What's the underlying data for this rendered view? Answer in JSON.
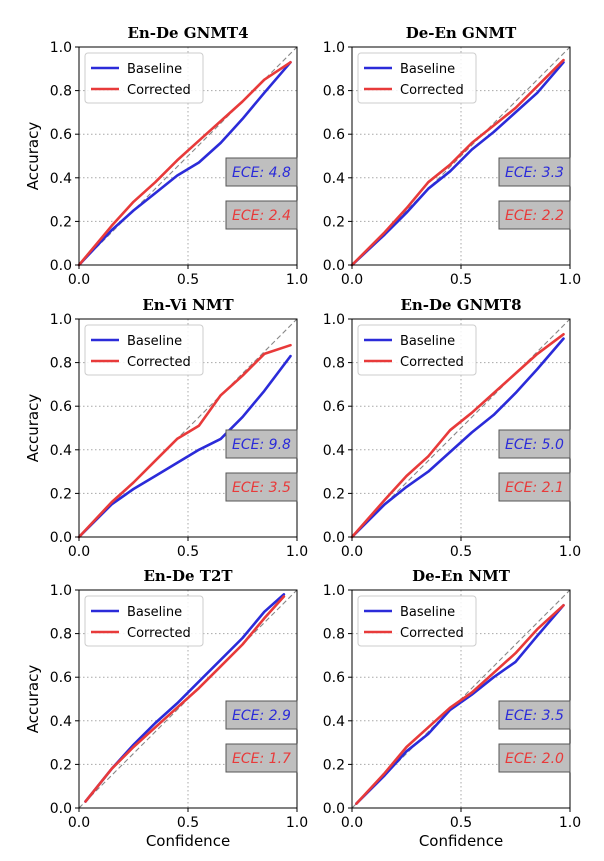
{
  "colors": {
    "baseline": "#2b2bd9",
    "corrected": "#e83a3a",
    "diagonal": "#888888",
    "ece_box": "#bfbfbf"
  },
  "axis_labels": {
    "x": "Confidence",
    "y": "Accuracy"
  },
  "chart_data": [
    {
      "type": "line",
      "title": "En-De GNMT4",
      "xlim": [
        0,
        1
      ],
      "ylim": [
        0,
        1
      ],
      "xticks": [
        "0.0",
        "0.5",
        "1.0"
      ],
      "yticks": [
        "0.0",
        "0.2",
        "0.4",
        "0.6",
        "0.8",
        "1.0"
      ],
      "grid": true,
      "legend": "top-left",
      "series": [
        {
          "name": "Baseline",
          "x": [
            0,
            0.15,
            0.25,
            0.35,
            0.45,
            0.55,
            0.65,
            0.75,
            0.85,
            0.97
          ],
          "y": [
            0,
            0.16,
            0.25,
            0.33,
            0.41,
            0.47,
            0.56,
            0.67,
            0.79,
            0.93
          ]
        },
        {
          "name": "Corrected",
          "x": [
            0,
            0.15,
            0.25,
            0.35,
            0.45,
            0.55,
            0.65,
            0.75,
            0.85,
            0.97
          ],
          "y": [
            0,
            0.18,
            0.29,
            0.38,
            0.48,
            0.57,
            0.66,
            0.75,
            0.85,
            0.93
          ]
        }
      ],
      "ece": [
        {
          "label": "ECE: 4.8",
          "series": "Baseline"
        },
        {
          "label": "ECE: 2.4",
          "series": "Corrected"
        }
      ]
    },
    {
      "type": "line",
      "title": "De-En GNMT",
      "xlim": [
        0,
        1
      ],
      "ylim": [
        0,
        1
      ],
      "xticks": [
        "0.0",
        "0.5",
        "1.0"
      ],
      "yticks": [
        "0.0",
        "0.2",
        "0.4",
        "0.6",
        "0.8",
        "1.0"
      ],
      "grid": true,
      "legend": "top-left",
      "series": [
        {
          "name": "Baseline",
          "x": [
            0,
            0.15,
            0.25,
            0.35,
            0.45,
            0.55,
            0.65,
            0.75,
            0.85,
            0.97
          ],
          "y": [
            0,
            0.14,
            0.24,
            0.35,
            0.43,
            0.53,
            0.61,
            0.7,
            0.79,
            0.93
          ]
        },
        {
          "name": "Corrected",
          "x": [
            0,
            0.15,
            0.25,
            0.35,
            0.45,
            0.55,
            0.65,
            0.75,
            0.85,
            0.97
          ],
          "y": [
            0,
            0.15,
            0.26,
            0.38,
            0.46,
            0.56,
            0.64,
            0.72,
            0.82,
            0.94
          ]
        }
      ],
      "ece": [
        {
          "label": "ECE: 3.3",
          "series": "Baseline"
        },
        {
          "label": "ECE: 2.2",
          "series": "Corrected"
        }
      ]
    },
    {
      "type": "line",
      "title": "En-Vi NMT",
      "xlim": [
        0,
        1
      ],
      "ylim": [
        0,
        1
      ],
      "xticks": [
        "0.0",
        "0.5",
        "1.0"
      ],
      "yticks": [
        "0.0",
        "0.2",
        "0.4",
        "0.6",
        "0.8",
        "1.0"
      ],
      "grid": true,
      "legend": "top-left",
      "series": [
        {
          "name": "Baseline",
          "x": [
            0,
            0.15,
            0.25,
            0.35,
            0.45,
            0.55,
            0.65,
            0.75,
            0.85,
            0.97
          ],
          "y": [
            0,
            0.15,
            0.22,
            0.28,
            0.34,
            0.4,
            0.45,
            0.55,
            0.67,
            0.83
          ]
        },
        {
          "name": "Corrected",
          "x": [
            0,
            0.15,
            0.25,
            0.35,
            0.45,
            0.55,
            0.65,
            0.75,
            0.85,
            0.97
          ],
          "y": [
            0,
            0.16,
            0.25,
            0.35,
            0.45,
            0.51,
            0.65,
            0.74,
            0.84,
            0.88
          ]
        }
      ],
      "ece": [
        {
          "label": "ECE: 9.8",
          "series": "Baseline"
        },
        {
          "label": "ECE: 3.5",
          "series": "Corrected"
        }
      ]
    },
    {
      "type": "line",
      "title": "En-De GNMT8",
      "xlim": [
        0,
        1
      ],
      "ylim": [
        0,
        1
      ],
      "xticks": [
        "0.0",
        "0.5",
        "1.0"
      ],
      "yticks": [
        "0.0",
        "0.2",
        "0.4",
        "0.6",
        "0.8",
        "1.0"
      ],
      "grid": true,
      "legend": "top-left",
      "series": [
        {
          "name": "Baseline",
          "x": [
            0,
            0.15,
            0.25,
            0.35,
            0.45,
            0.55,
            0.65,
            0.75,
            0.85,
            0.97
          ],
          "y": [
            0,
            0.15,
            0.23,
            0.3,
            0.39,
            0.48,
            0.56,
            0.66,
            0.77,
            0.91
          ]
        },
        {
          "name": "Corrected",
          "x": [
            0,
            0.15,
            0.25,
            0.35,
            0.45,
            0.55,
            0.65,
            0.75,
            0.85,
            0.97
          ],
          "y": [
            0,
            0.17,
            0.28,
            0.37,
            0.49,
            0.57,
            0.66,
            0.75,
            0.84,
            0.93
          ]
        }
      ],
      "ece": [
        {
          "label": "ECE: 5.0",
          "series": "Baseline"
        },
        {
          "label": "ECE: 2.1",
          "series": "Corrected"
        }
      ]
    },
    {
      "type": "line",
      "title": "En-De T2T",
      "xlim": [
        0,
        1
      ],
      "ylim": [
        0,
        1
      ],
      "xticks": [
        "0.0",
        "0.5",
        "1.0"
      ],
      "yticks": [
        "0.0",
        "0.2",
        "0.4",
        "0.6",
        "0.8",
        "1.0"
      ],
      "grid": true,
      "legend": "top-left",
      "series": [
        {
          "name": "Baseline",
          "x": [
            0.03,
            0.15,
            0.25,
            0.35,
            0.45,
            0.55,
            0.65,
            0.75,
            0.85,
            0.94
          ],
          "y": [
            0.03,
            0.18,
            0.29,
            0.39,
            0.48,
            0.58,
            0.68,
            0.78,
            0.9,
            0.98
          ]
        },
        {
          "name": "Corrected",
          "x": [
            0.03,
            0.15,
            0.25,
            0.35,
            0.45,
            0.55,
            0.65,
            0.75,
            0.85,
            0.94
          ],
          "y": [
            0.03,
            0.18,
            0.28,
            0.37,
            0.46,
            0.55,
            0.65,
            0.75,
            0.87,
            0.97
          ]
        }
      ],
      "ece": [
        {
          "label": "ECE: 2.9",
          "series": "Baseline"
        },
        {
          "label": "ECE: 1.7",
          "series": "Corrected"
        }
      ]
    },
    {
      "type": "line",
      "title": "De-En NMT",
      "xlim": [
        0,
        1
      ],
      "ylim": [
        0,
        1
      ],
      "xticks": [
        "0.0",
        "0.5",
        "1.0"
      ],
      "yticks": [
        "0.0",
        "0.2",
        "0.4",
        "0.6",
        "0.8",
        "1.0"
      ],
      "grid": true,
      "legend": "top-left",
      "series": [
        {
          "name": "Baseline",
          "x": [
            0.02,
            0.15,
            0.25,
            0.35,
            0.45,
            0.55,
            0.65,
            0.75,
            0.85,
            0.97
          ],
          "y": [
            0.02,
            0.15,
            0.26,
            0.34,
            0.45,
            0.52,
            0.6,
            0.67,
            0.79,
            0.93
          ]
        },
        {
          "name": "Corrected",
          "x": [
            0.02,
            0.15,
            0.25,
            0.35,
            0.45,
            0.55,
            0.65,
            0.75,
            0.85,
            0.97
          ],
          "y": [
            0.02,
            0.16,
            0.28,
            0.37,
            0.46,
            0.53,
            0.62,
            0.71,
            0.82,
            0.93
          ]
        }
      ],
      "ece": [
        {
          "label": "ECE: 3.5",
          "series": "Baseline"
        },
        {
          "label": "ECE: 2.0",
          "series": "Corrected"
        }
      ]
    }
  ]
}
